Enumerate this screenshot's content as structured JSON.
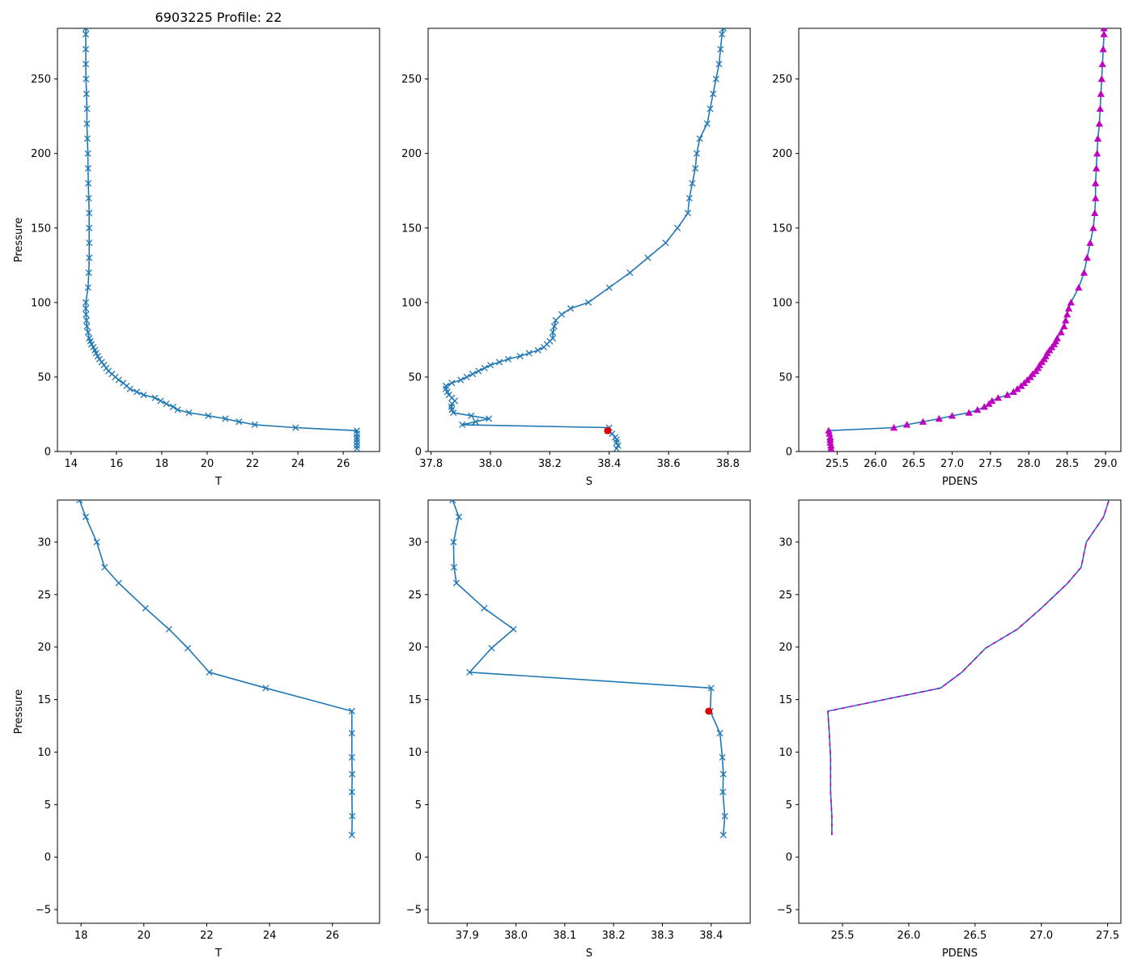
{
  "figure": {
    "title": "6903225 Profile: 22"
  },
  "colors": {
    "line": "#1f77b4",
    "density": "#c000c0",
    "flag": "#e00000"
  },
  "chart_data": [
    {
      "type": "line",
      "id": "p1",
      "title": "6903225 Profile: 22",
      "xlabel": "T",
      "ylabel": "Pressure",
      "xlim": [
        13.4,
        27.6
      ],
      "ylim": [
        284,
        0
      ],
      "y_inverted": true,
      "xticks": [
        14,
        16,
        18,
        20,
        22,
        24,
        26
      ],
      "yticks": [
        0,
        50,
        100,
        150,
        200,
        250
      ],
      "series": [
        {
          "name": "T",
          "marker": "x",
          "color": "#1f77b4",
          "x": [
            26.6,
            26.6,
            26.6,
            26.6,
            26.6,
            26.6,
            26.6,
            23.9,
            22.1,
            21.4,
            20.8,
            20.05,
            19.2,
            18.7,
            18.5,
            18.2,
            17.95,
            17.7,
            17.2,
            16.9,
            16.6,
            16.45,
            16.3,
            16.1,
            15.95,
            15.8,
            15.65,
            15.55,
            15.45,
            15.35,
            15.25,
            15.18,
            15.1,
            15.05,
            14.98,
            14.9,
            14.85,
            14.8,
            14.75,
            14.7,
            14.68,
            14.66,
            14.65,
            14.65,
            14.75,
            14.78,
            14.8,
            14.8,
            14.8,
            14.8,
            14.78,
            14.76,
            14.75,
            14.74,
            14.72,
            14.7,
            14.7,
            14.68,
            14.66,
            14.65,
            14.65,
            14.65,
            14.65
          ],
          "y": [
            2,
            4,
            6,
            8,
            9.5,
            12,
            14,
            16,
            18,
            20,
            22,
            24,
            26,
            28,
            30,
            32,
            34,
            36,
            38,
            40,
            42,
            44,
            46,
            48,
            50,
            52,
            54,
            56,
            58,
            60,
            62,
            64,
            66,
            68,
            70,
            72,
            74,
            76,
            80,
            84,
            88,
            92,
            96,
            100,
            110,
            120,
            130,
            140,
            150,
            160,
            170,
            180,
            190,
            200,
            210,
            220,
            230,
            240,
            250,
            260,
            270,
            280,
            284
          ]
        }
      ]
    },
    {
      "type": "line",
      "id": "p2",
      "title": "",
      "xlabel": "S",
      "ylabel": "",
      "xlim": [
        37.79,
        38.875
      ],
      "ylim": [
        284,
        0
      ],
      "y_inverted": true,
      "xticks": [
        37.8,
        38.0,
        38.2,
        38.4,
        38.6,
        38.8
      ],
      "yticks": [
        0,
        50,
        100,
        150,
        200,
        250
      ],
      "series": [
        {
          "name": "S",
          "marker": "x",
          "color": "#1f77b4",
          "x": [
            38.425,
            38.43,
            38.425,
            38.425,
            38.42,
            38.41,
            38.395,
            38.4,
            37.905,
            37.95,
            37.995,
            37.935,
            37.875,
            37.87,
            37.868,
            37.87,
            37.88,
            37.87,
            37.86,
            37.855,
            37.85,
            37.85,
            37.87,
            37.9,
            37.92,
            37.94,
            37.96,
            37.98,
            38.0,
            38.03,
            38.06,
            38.1,
            38.13,
            38.16,
            38.18,
            38.19,
            38.2,
            38.21,
            38.21,
            38.215,
            38.22,
            38.24,
            38.27,
            38.33,
            38.4,
            38.47,
            38.53,
            38.59,
            38.63,
            38.665,
            38.67,
            38.68,
            38.69,
            38.695,
            38.705,
            38.73,
            38.74,
            38.75,
            38.76,
            38.77,
            38.775,
            38.78,
            38.785
          ],
          "y": [
            2,
            4,
            6,
            8,
            9.5,
            12,
            14,
            16,
            18,
            20,
            22,
            24,
            26,
            28,
            30,
            32,
            34,
            36,
            38,
            40,
            42,
            44,
            46,
            48,
            50,
            52,
            54,
            56,
            58,
            60,
            62,
            64,
            66,
            68,
            70,
            72,
            74,
            76,
            80,
            84,
            88,
            92,
            96,
            100,
            110,
            120,
            130,
            140,
            150,
            160,
            170,
            180,
            190,
            200,
            210,
            220,
            230,
            240,
            250,
            260,
            270,
            280,
            284
          ]
        },
        {
          "name": "flagged",
          "marker": "dot",
          "color": "#e00000",
          "x": [
            38.395
          ],
          "y": [
            14
          ]
        }
      ]
    },
    {
      "type": "line",
      "id": "p3",
      "title": "",
      "xlabel": "PDENS",
      "ylabel": "",
      "xlim": [
        25.0,
        29.2
      ],
      "ylim": [
        284,
        0
      ],
      "y_inverted": true,
      "xticks": [
        25.5,
        26.0,
        26.5,
        27.0,
        27.5,
        28.0,
        28.5,
        29.0
      ],
      "yticks": [
        0,
        50,
        100,
        150,
        200,
        250
      ],
      "series": [
        {
          "name": "PDENS",
          "marker": "triangle",
          "color": "#1f77b4",
          "marker_color": "#c000c0",
          "x": [
            25.42,
            25.42,
            25.41,
            25.41,
            25.41,
            25.4,
            25.39,
            26.24,
            26.41,
            26.62,
            26.83,
            27.0,
            27.22,
            27.33,
            27.42,
            27.48,
            27.52,
            27.6,
            27.72,
            27.8,
            27.85,
            27.9,
            27.94,
            27.98,
            28.02,
            28.05,
            28.09,
            28.12,
            28.14,
            28.17,
            28.2,
            28.22,
            28.24,
            28.27,
            28.3,
            28.33,
            28.35,
            28.37,
            28.42,
            28.46,
            28.48,
            28.5,
            28.52,
            28.55,
            28.65,
            28.72,
            28.76,
            28.8,
            28.84,
            28.86,
            28.87,
            28.87,
            28.88,
            28.89,
            28.9,
            28.92,
            28.93,
            28.94,
            28.95,
            28.96,
            28.97,
            28.98,
            28.98
          ],
          "y": [
            2,
            4,
            6,
            8,
            9.5,
            12,
            14,
            16,
            18,
            20,
            22,
            24,
            26,
            28,
            30,
            32,
            34,
            36,
            38,
            40,
            42,
            44,
            46,
            48,
            50,
            52,
            54,
            56,
            58,
            60,
            62,
            64,
            66,
            68,
            70,
            72,
            74,
            76,
            80,
            84,
            88,
            92,
            96,
            100,
            110,
            120,
            130,
            140,
            150,
            160,
            170,
            180,
            190,
            200,
            210,
            220,
            230,
            240,
            250,
            260,
            270,
            280,
            284
          ]
        }
      ]
    },
    {
      "type": "line",
      "id": "p4",
      "title": "",
      "xlabel": "T",
      "ylabel": "Pressure",
      "xlim": [
        17.25,
        27.5
      ],
      "ylim": [
        34,
        -6.3
      ],
      "y_inverted": true,
      "xticks": [
        18,
        20,
        22,
        24,
        26
      ],
      "yticks": [
        -5,
        0,
        5,
        10,
        15,
        20,
        25,
        30
      ],
      "series": [
        {
          "name": "T",
          "marker": "x",
          "color": "#1f77b4",
          "x": [
            26.62,
            26.63,
            26.62,
            26.63,
            26.62,
            26.62,
            26.62,
            23.88,
            22.08,
            21.4,
            20.8,
            20.05,
            19.2,
            18.75,
            18.5,
            18.15,
            17.95
          ],
          "y": [
            2.1,
            3.9,
            6.2,
            7.9,
            9.5,
            11.8,
            13.9,
            16.1,
            17.6,
            19.9,
            21.7,
            23.7,
            26.1,
            27.6,
            30.0,
            32.4,
            34.0
          ]
        }
      ]
    },
    {
      "type": "line",
      "id": "p5",
      "title": "",
      "xlabel": "S",
      "ylabel": "",
      "xlim": [
        37.82,
        38.48
      ],
      "ylim": [
        34,
        -6.3
      ],
      "y_inverted": true,
      "xticks": [
        37.9,
        38.0,
        38.1,
        38.2,
        38.3,
        38.4
      ],
      "yticks": [
        -5,
        0,
        5,
        10,
        15,
        20,
        25,
        30
      ],
      "series": [
        {
          "name": "S",
          "marker": "x",
          "color": "#1f77b4",
          "x": [
            38.425,
            38.428,
            38.424,
            38.425,
            38.423,
            38.418,
            38.398,
            38.4,
            37.905,
            37.95,
            37.995,
            37.935,
            37.878,
            37.873,
            37.872,
            37.883,
            37.87
          ],
          "y": [
            2.1,
            3.9,
            6.2,
            7.9,
            9.5,
            11.8,
            13.9,
            16.1,
            17.6,
            19.9,
            21.7,
            23.7,
            26.1,
            27.6,
            30.0,
            32.4,
            34.0
          ]
        },
        {
          "name": "flagged",
          "marker": "dot",
          "color": "#e00000",
          "x": [
            38.395
          ],
          "y": [
            13.9
          ]
        }
      ]
    },
    {
      "type": "line",
      "id": "p6",
      "title": "",
      "xlabel": "PDENS",
      "ylabel": "",
      "xlim": [
        25.17,
        27.6
      ],
      "ylim": [
        34,
        -6.3
      ],
      "y_inverted": true,
      "xticks": [
        25.5,
        26.0,
        26.5,
        27.0,
        27.5
      ],
      "yticks": [
        -5,
        0,
        5,
        10,
        15,
        20,
        25,
        30
      ],
      "series": [
        {
          "name": "PDENS",
          "marker": "none",
          "color": "#1f77b4",
          "x": [
            25.42,
            25.42,
            25.41,
            25.41,
            25.41,
            25.4,
            25.39,
            26.24,
            26.4,
            26.58,
            26.82,
            27.0,
            27.2,
            27.3,
            27.34,
            27.47,
            27.51
          ],
          "y": [
            2.1,
            3.9,
            6.2,
            7.9,
            9.5,
            11.8,
            13.9,
            16.1,
            17.6,
            19.9,
            21.7,
            23.7,
            26.1,
            27.6,
            30.0,
            32.4,
            34.0
          ]
        },
        {
          "name": "PDENS overlay",
          "marker": "none",
          "dashed": true,
          "color": "#c000c0",
          "x": [
            25.42,
            25.42,
            25.41,
            25.41,
            25.41,
            25.4,
            25.39,
            26.24,
            26.4,
            26.58,
            26.82,
            27.0,
            27.2,
            27.3,
            27.34,
            27.47,
            27.51
          ],
          "y": [
            2.1,
            3.9,
            6.2,
            7.9,
            9.5,
            11.8,
            13.9,
            16.1,
            17.6,
            19.9,
            21.7,
            23.7,
            26.1,
            27.6,
            30.0,
            32.4,
            34.0
          ]
        }
      ]
    }
  ]
}
